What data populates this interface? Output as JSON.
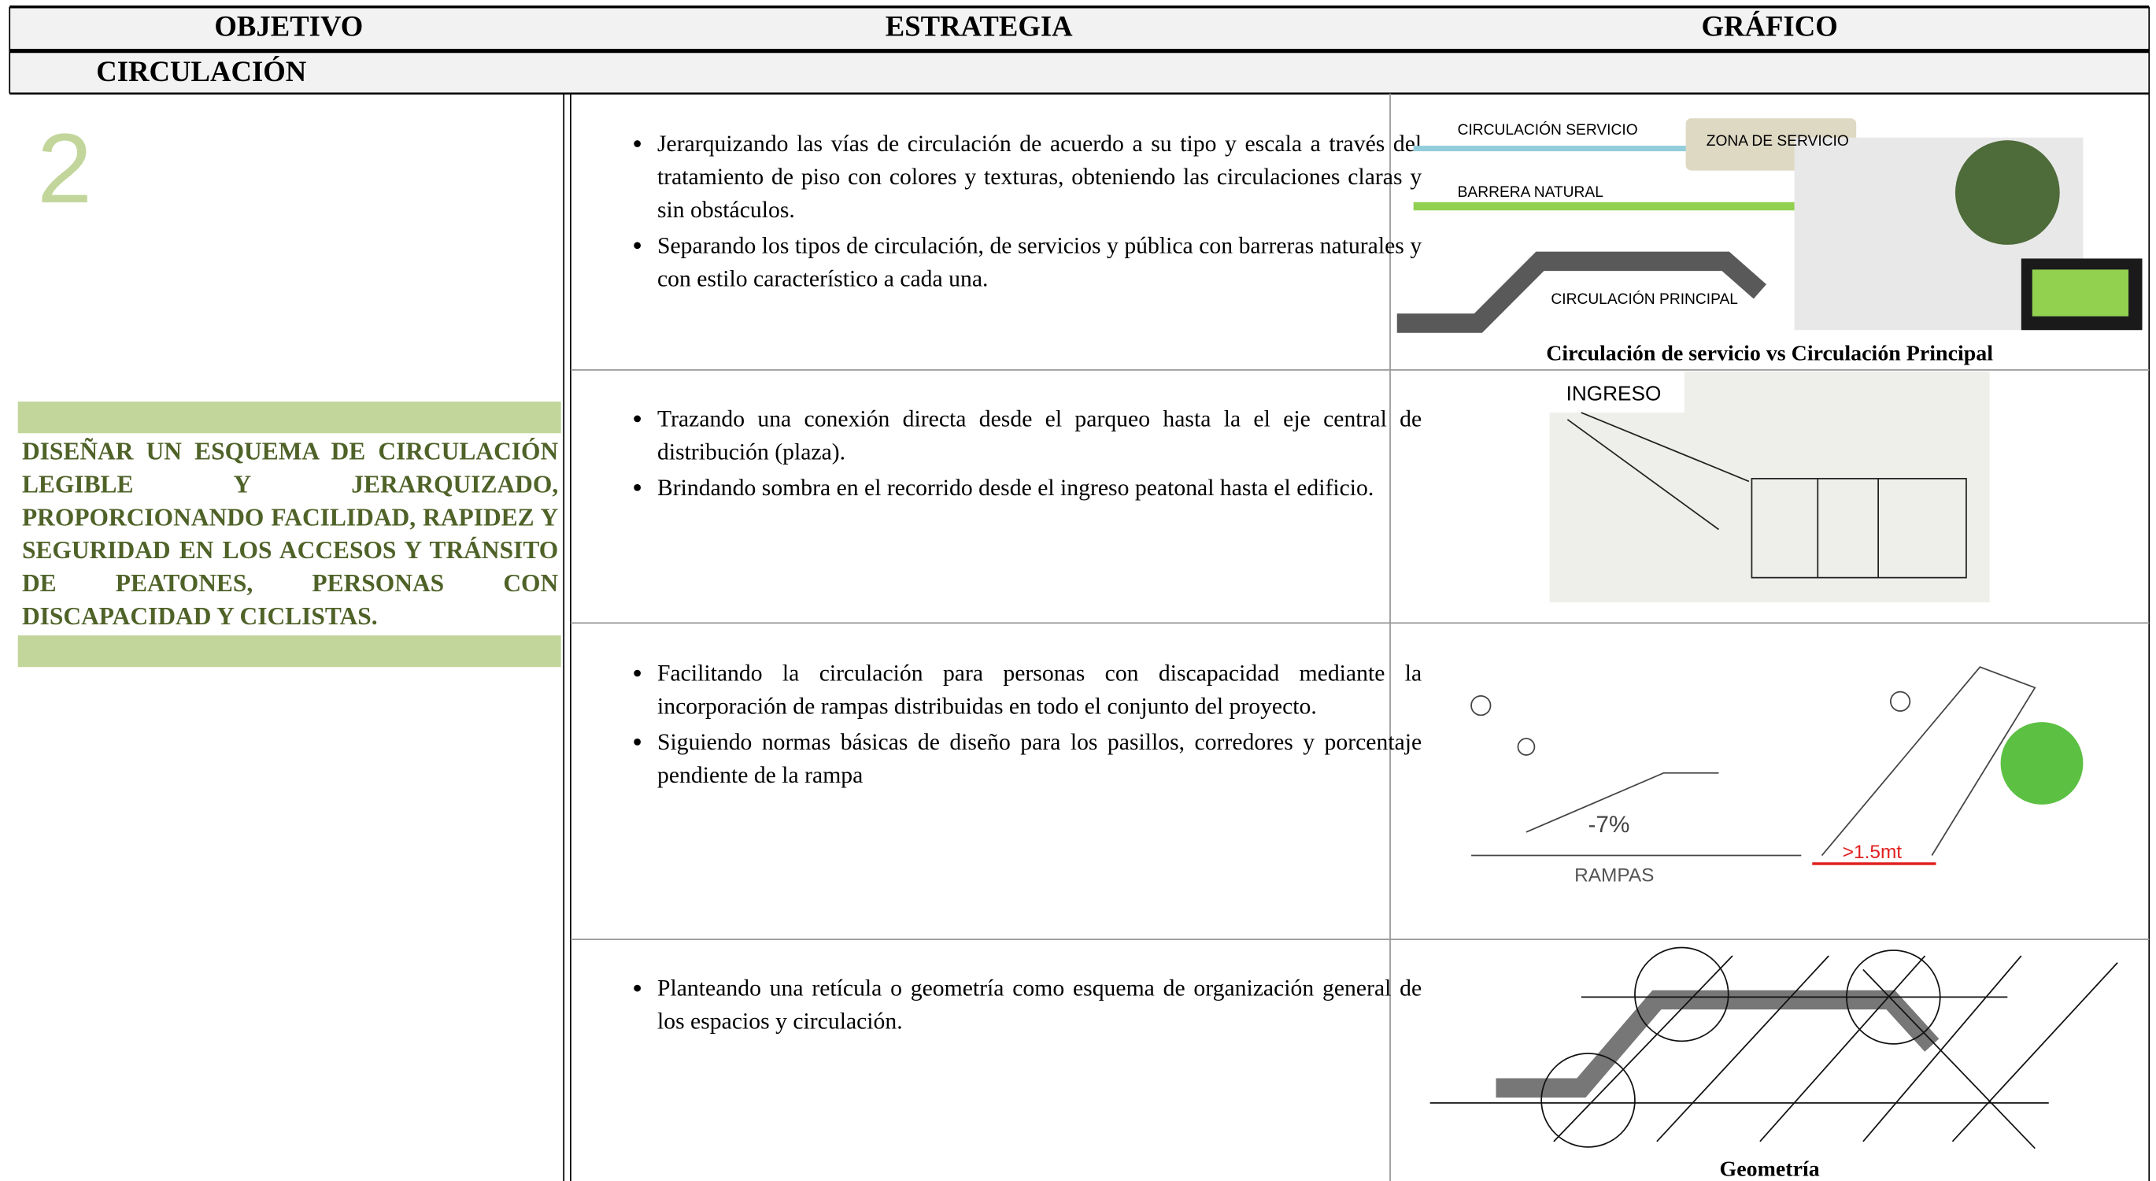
{
  "header": {
    "columns": [
      "OBJETIVO",
      "ESTRATEGIA",
      "GRÁFICO"
    ],
    "section": "CIRCULACIÓN"
  },
  "objective": {
    "number": "2",
    "text": "DISEÑAR UN ESQUEMA DE CIRCULACIÓN LEGIBLE Y JERARQUIZADO, PROPORCIONANDO FACILIDAD, RAPIDEZ Y SEGURIDAD EN LOS ACCESOS Y TRÁNSITO DE PEATONES, PERSONAS CON DISCAPACIDAD Y CICLISTAS."
  },
  "rows": [
    {
      "bullets": [
        "Jerarquizando las vías de circulación de acuerdo a su tipo y escala a través del tratamiento de piso con colores y texturas, obteniendo las circulaciones claras y sin obstáculos.",
        "Separando los tipos de circulación, de servicios y pública con barreras naturales y con estilo característico a cada una."
      ],
      "graphic": {
        "labels": [
          "CIRCULACIÓN SERVICIO",
          "ZONA DE SERVICIO",
          "BARRERA NATURAL",
          "CIRCULACIÓN PRINCIPAL"
        ],
        "caption": "Circulación de servicio vs Circulación Principal"
      }
    },
    {
      "bullets": [
        "Trazando una conexión directa desde el parqueo hasta la el eje central de distribución (plaza).",
        "Brindando sombra en el recorrido desde el ingreso peatonal hasta el edificio."
      ],
      "graphic": {
        "labels": [
          "INGRESO"
        ]
      }
    },
    {
      "bullets": [
        "Facilitando la circulación para personas con discapacidad mediante la incorporación de rampas distribuidas en todo el conjunto del proyecto.",
        "Siguiendo normas básicas de diseño para los pasillos, corredores y porcentaje pendiente de la rampa"
      ],
      "graphic": {
        "labels": [
          "-7%",
          "RAMPAS",
          ">1.5mt"
        ]
      }
    },
    {
      "bullets": [
        "Planteando una retícula o geometría como esquema de organización general de los espacios y circulación."
      ],
      "graphic": {
        "caption": "Geometría"
      }
    }
  ]
}
